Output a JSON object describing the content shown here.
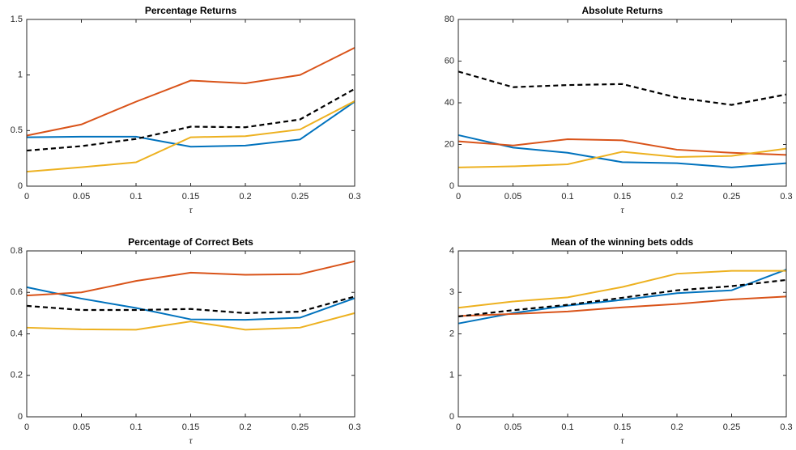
{
  "chart_data": [
    {
      "type": "line",
      "title": "Percentage Returns",
      "xlabel": "τ",
      "x": [
        0,
        0.05,
        0.1,
        0.15,
        0.2,
        0.25,
        0.3
      ],
      "xlim": [
        0,
        0.3
      ],
      "xticks": [
        0,
        0.05,
        0.1,
        0.15,
        0.2,
        0.25,
        0.3
      ],
      "ylim": [
        0,
        1.5
      ],
      "yticks": [
        0,
        0.5,
        1,
        1.5
      ],
      "series": [
        {
          "color": "#0072bd",
          "linestyle": "solid",
          "values": [
            0.44,
            0.445,
            0.445,
            0.355,
            0.365,
            0.42,
            0.76
          ]
        },
        {
          "color": "#d95319",
          "linestyle": "solid",
          "values": [
            0.455,
            0.555,
            0.76,
            0.95,
            0.925,
            1.0,
            1.245
          ]
        },
        {
          "color": "#edb120",
          "linestyle": "solid",
          "values": [
            0.13,
            0.17,
            0.215,
            0.44,
            0.45,
            0.51,
            0.765
          ]
        },
        {
          "color": "#000000",
          "linestyle": "dashed",
          "values": [
            0.32,
            0.36,
            0.425,
            0.535,
            0.53,
            0.6,
            0.875
          ]
        }
      ]
    },
    {
      "type": "line",
      "title": "Absolute Returns",
      "xlabel": "τ",
      "x": [
        0,
        0.05,
        0.1,
        0.15,
        0.2,
        0.25,
        0.3
      ],
      "xlim": [
        0,
        0.3
      ],
      "xticks": [
        0,
        0.05,
        0.1,
        0.15,
        0.2,
        0.25,
        0.3
      ],
      "ylim": [
        0,
        80
      ],
      "yticks": [
        0,
        20,
        40,
        60,
        80
      ],
      "series": [
        {
          "color": "#0072bd",
          "linestyle": "solid",
          "values": [
            24.5,
            18.5,
            16,
            11.5,
            11,
            9,
            11
          ]
        },
        {
          "color": "#d95319",
          "linestyle": "solid",
          "values": [
            21.5,
            19.5,
            22.5,
            22,
            17.5,
            16,
            15
          ]
        },
        {
          "color": "#edb120",
          "linestyle": "solid",
          "values": [
            9,
            9.5,
            10.5,
            16.5,
            14,
            14.5,
            18
          ]
        },
        {
          "color": "#000000",
          "linestyle": "dashed",
          "values": [
            55,
            47.5,
            48.5,
            49,
            42.5,
            39,
            44
          ]
        }
      ]
    },
    {
      "type": "line",
      "title": "Percentage of Correct Bets",
      "xlabel": "τ",
      "x": [
        0,
        0.05,
        0.1,
        0.15,
        0.2,
        0.25,
        0.3
      ],
      "xlim": [
        0,
        0.3
      ],
      "xticks": [
        0,
        0.05,
        0.1,
        0.15,
        0.2,
        0.25,
        0.3
      ],
      "ylim": [
        0,
        0.8
      ],
      "yticks": [
        0,
        0.2,
        0.4,
        0.6,
        0.8
      ],
      "series": [
        {
          "color": "#0072bd",
          "linestyle": "solid",
          "values": [
            0.625,
            0.57,
            0.525,
            0.47,
            0.468,
            0.478,
            0.572
          ]
        },
        {
          "color": "#d95319",
          "linestyle": "solid",
          "values": [
            0.585,
            0.6,
            0.655,
            0.695,
            0.685,
            0.688,
            0.75
          ]
        },
        {
          "color": "#edb120",
          "linestyle": "solid",
          "values": [
            0.43,
            0.422,
            0.42,
            0.46,
            0.42,
            0.43,
            0.5
          ]
        },
        {
          "color": "#000000",
          "linestyle": "dashed",
          "values": [
            0.535,
            0.515,
            0.515,
            0.52,
            0.5,
            0.507,
            0.58
          ]
        }
      ]
    },
    {
      "type": "line",
      "title": "Mean of the winning bets odds",
      "xlabel": "τ",
      "x": [
        0,
        0.05,
        0.1,
        0.15,
        0.2,
        0.25,
        0.3
      ],
      "xlim": [
        0,
        0.3
      ],
      "xticks": [
        0,
        0.05,
        0.1,
        0.15,
        0.2,
        0.25,
        0.3
      ],
      "ylim": [
        0,
        4
      ],
      "yticks": [
        0,
        1,
        2,
        3,
        4
      ],
      "series": [
        {
          "color": "#0072bd",
          "linestyle": "solid",
          "values": [
            2.25,
            2.5,
            2.68,
            2.82,
            2.98,
            3.05,
            3.55
          ]
        },
        {
          "color": "#d95319",
          "linestyle": "solid",
          "values": [
            2.43,
            2.48,
            2.54,
            2.64,
            2.72,
            2.83,
            2.9
          ]
        },
        {
          "color": "#edb120",
          "linestyle": "solid",
          "values": [
            2.63,
            2.78,
            2.88,
            3.13,
            3.45,
            3.52,
            3.52
          ]
        },
        {
          "color": "#000000",
          "linestyle": "dashed",
          "values": [
            2.42,
            2.57,
            2.7,
            2.87,
            3.05,
            3.15,
            3.3
          ]
        }
      ]
    }
  ]
}
